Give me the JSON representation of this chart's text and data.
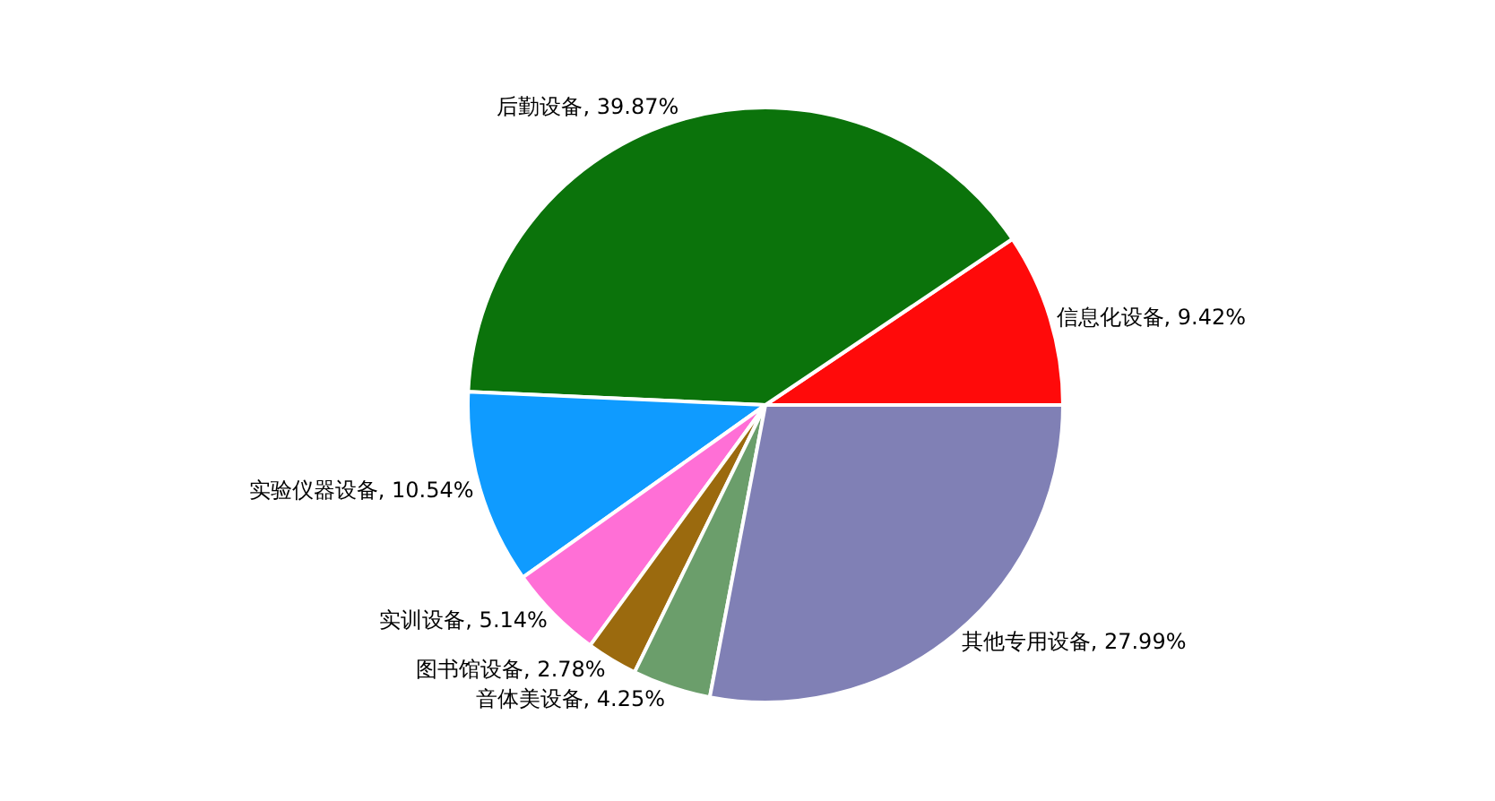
{
  "chart_data": {
    "type": "pie",
    "categories": [
      "信息化设备",
      "后勤设备",
      "实验仪器设备",
      "实训设备",
      "图书馆设备",
      "音体美设备",
      "其他专用设备"
    ],
    "values": [
      9.42,
      39.87,
      10.54,
      5.14,
      2.78,
      4.25,
      27.99
    ],
    "value_labels": [
      "9.42%",
      "39.87%",
      "10.54%",
      "5.14%",
      "2.78%",
      "4.25%",
      "27.99%"
    ],
    "colors": [
      "#ff0a0a",
      "#0b730b",
      "#0f9bff",
      "#ff6fd6",
      "#9b6a0e",
      "#6b9e6b",
      "#8080b5"
    ],
    "legend": false
  }
}
